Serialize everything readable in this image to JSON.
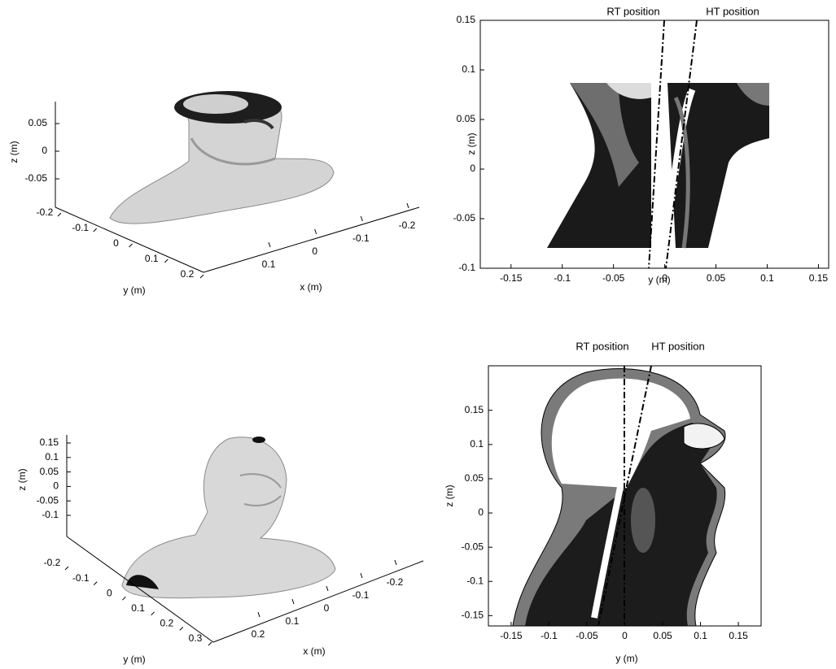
{
  "chart_data": [
    {
      "type": "surface3d",
      "xlabel": "x (m)",
      "ylabel": "y (m)",
      "zlabel": "z (m)",
      "zticks": [
        -0.05,
        0,
        0.05
      ],
      "yticks": [
        -0.2,
        -0.1,
        0,
        0.1,
        0.2
      ],
      "xticks": [
        0.1,
        0,
        -0.1,
        -0.2
      ]
    },
    {
      "type": "slice",
      "xlabel": "y (m)",
      "ylabel": "z (m)",
      "annotations": [
        "RT position",
        "HT position"
      ],
      "xlim": [
        -0.18,
        0.16
      ],
      "ylim": [
        -0.1,
        0.15
      ],
      "xticks": [
        -0.15,
        -0.1,
        -0.05,
        0,
        0.05,
        0.1,
        0.15
      ],
      "yticks": [
        -0.1,
        -0.05,
        0,
        0.05,
        0.1,
        0.15
      ]
    },
    {
      "type": "surface3d",
      "xlabel": "x (m)",
      "ylabel": "y (m)",
      "zlabel": "z (m)",
      "zticks": [
        -0.1,
        -0.05,
        0,
        0.05,
        0.1,
        0.15
      ],
      "yticks": [
        -0.2,
        -0.1,
        0,
        0.1,
        0.2,
        0.3
      ],
      "xticks": [
        0.2,
        0.1,
        0,
        -0.1,
        -0.2
      ]
    },
    {
      "type": "slice",
      "xlabel": "y (m)",
      "ylabel": "z (m)",
      "annotations": [
        "RT position",
        "HT position"
      ],
      "xlim": [
        -0.18,
        0.18
      ],
      "ylim": [
        -0.165,
        0.215
      ],
      "xticks": [
        -0.15,
        -0.1,
        -0.05,
        0,
        0.05,
        0.1,
        0.15
      ],
      "yticks": [
        -0.15,
        -0.1,
        -0.05,
        0,
        0.05,
        0.1,
        0.15
      ]
    }
  ]
}
